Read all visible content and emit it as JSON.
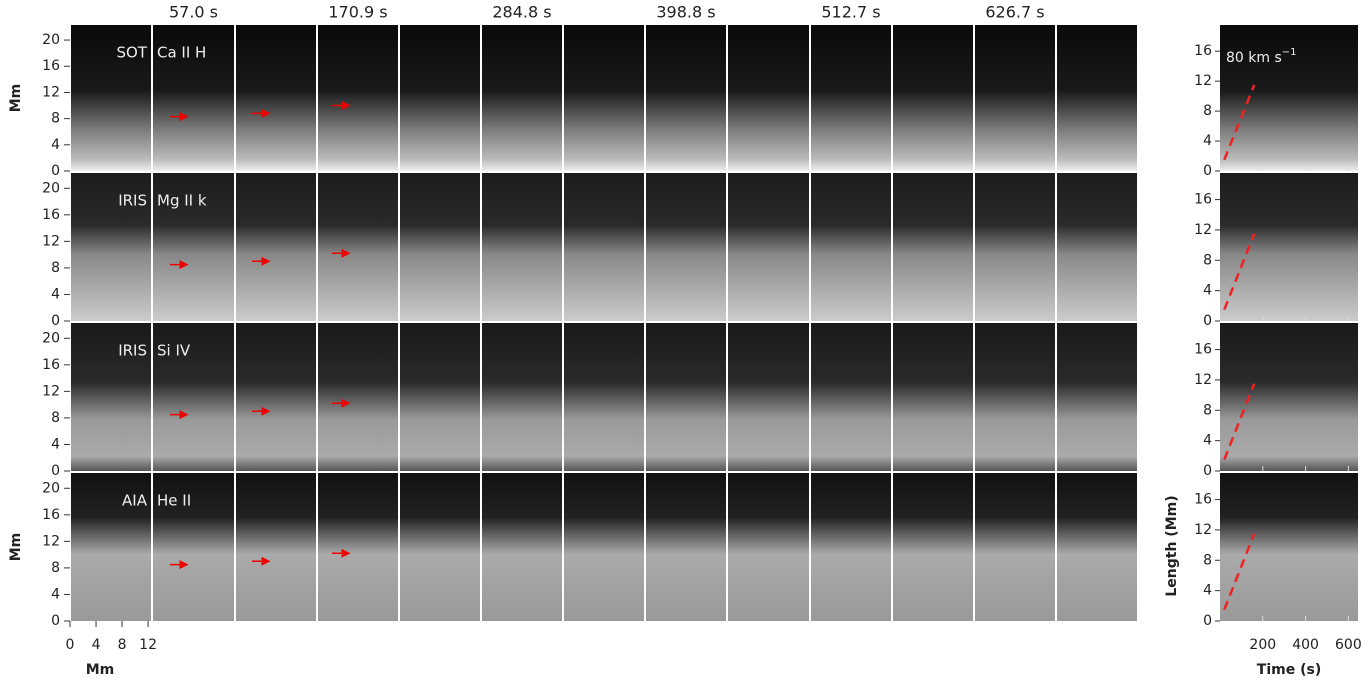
{
  "figure": {
    "time_labels": [
      "57.0 s",
      "170.9 s",
      "284.8 s",
      "398.8 s",
      "512.7 s",
      "626.7 s"
    ],
    "rows": [
      {
        "instrument": "SOT",
        "line": "Ca II H"
      },
      {
        "instrument": "IRIS",
        "line": "Mg II k"
      },
      {
        "instrument": "IRIS",
        "line": "Si IV"
      },
      {
        "instrument": "AIA",
        "line": "He II"
      }
    ],
    "panels": {
      "ylim": [
        0,
        22.3
      ],
      "yticks": [
        0,
        4,
        8,
        12,
        16,
        20
      ],
      "ylabel": "Mm",
      "xlim": [
        0,
        12.6
      ],
      "xticks": [
        0,
        4,
        8,
        12
      ],
      "xlabel": "Mm"
    },
    "time_distance": {
      "ylim": [
        0,
        19.5
      ],
      "yticks": [
        0,
        4,
        8,
        12,
        16
      ],
      "ylabel": "Length (Mm)",
      "xlim": [
        0,
        645
      ],
      "xticks": [
        200,
        400,
        600
      ],
      "xlabel": "Time (s)",
      "annotation": {
        "text": "80 km s",
        "superscript": "−1"
      }
    }
  }
}
